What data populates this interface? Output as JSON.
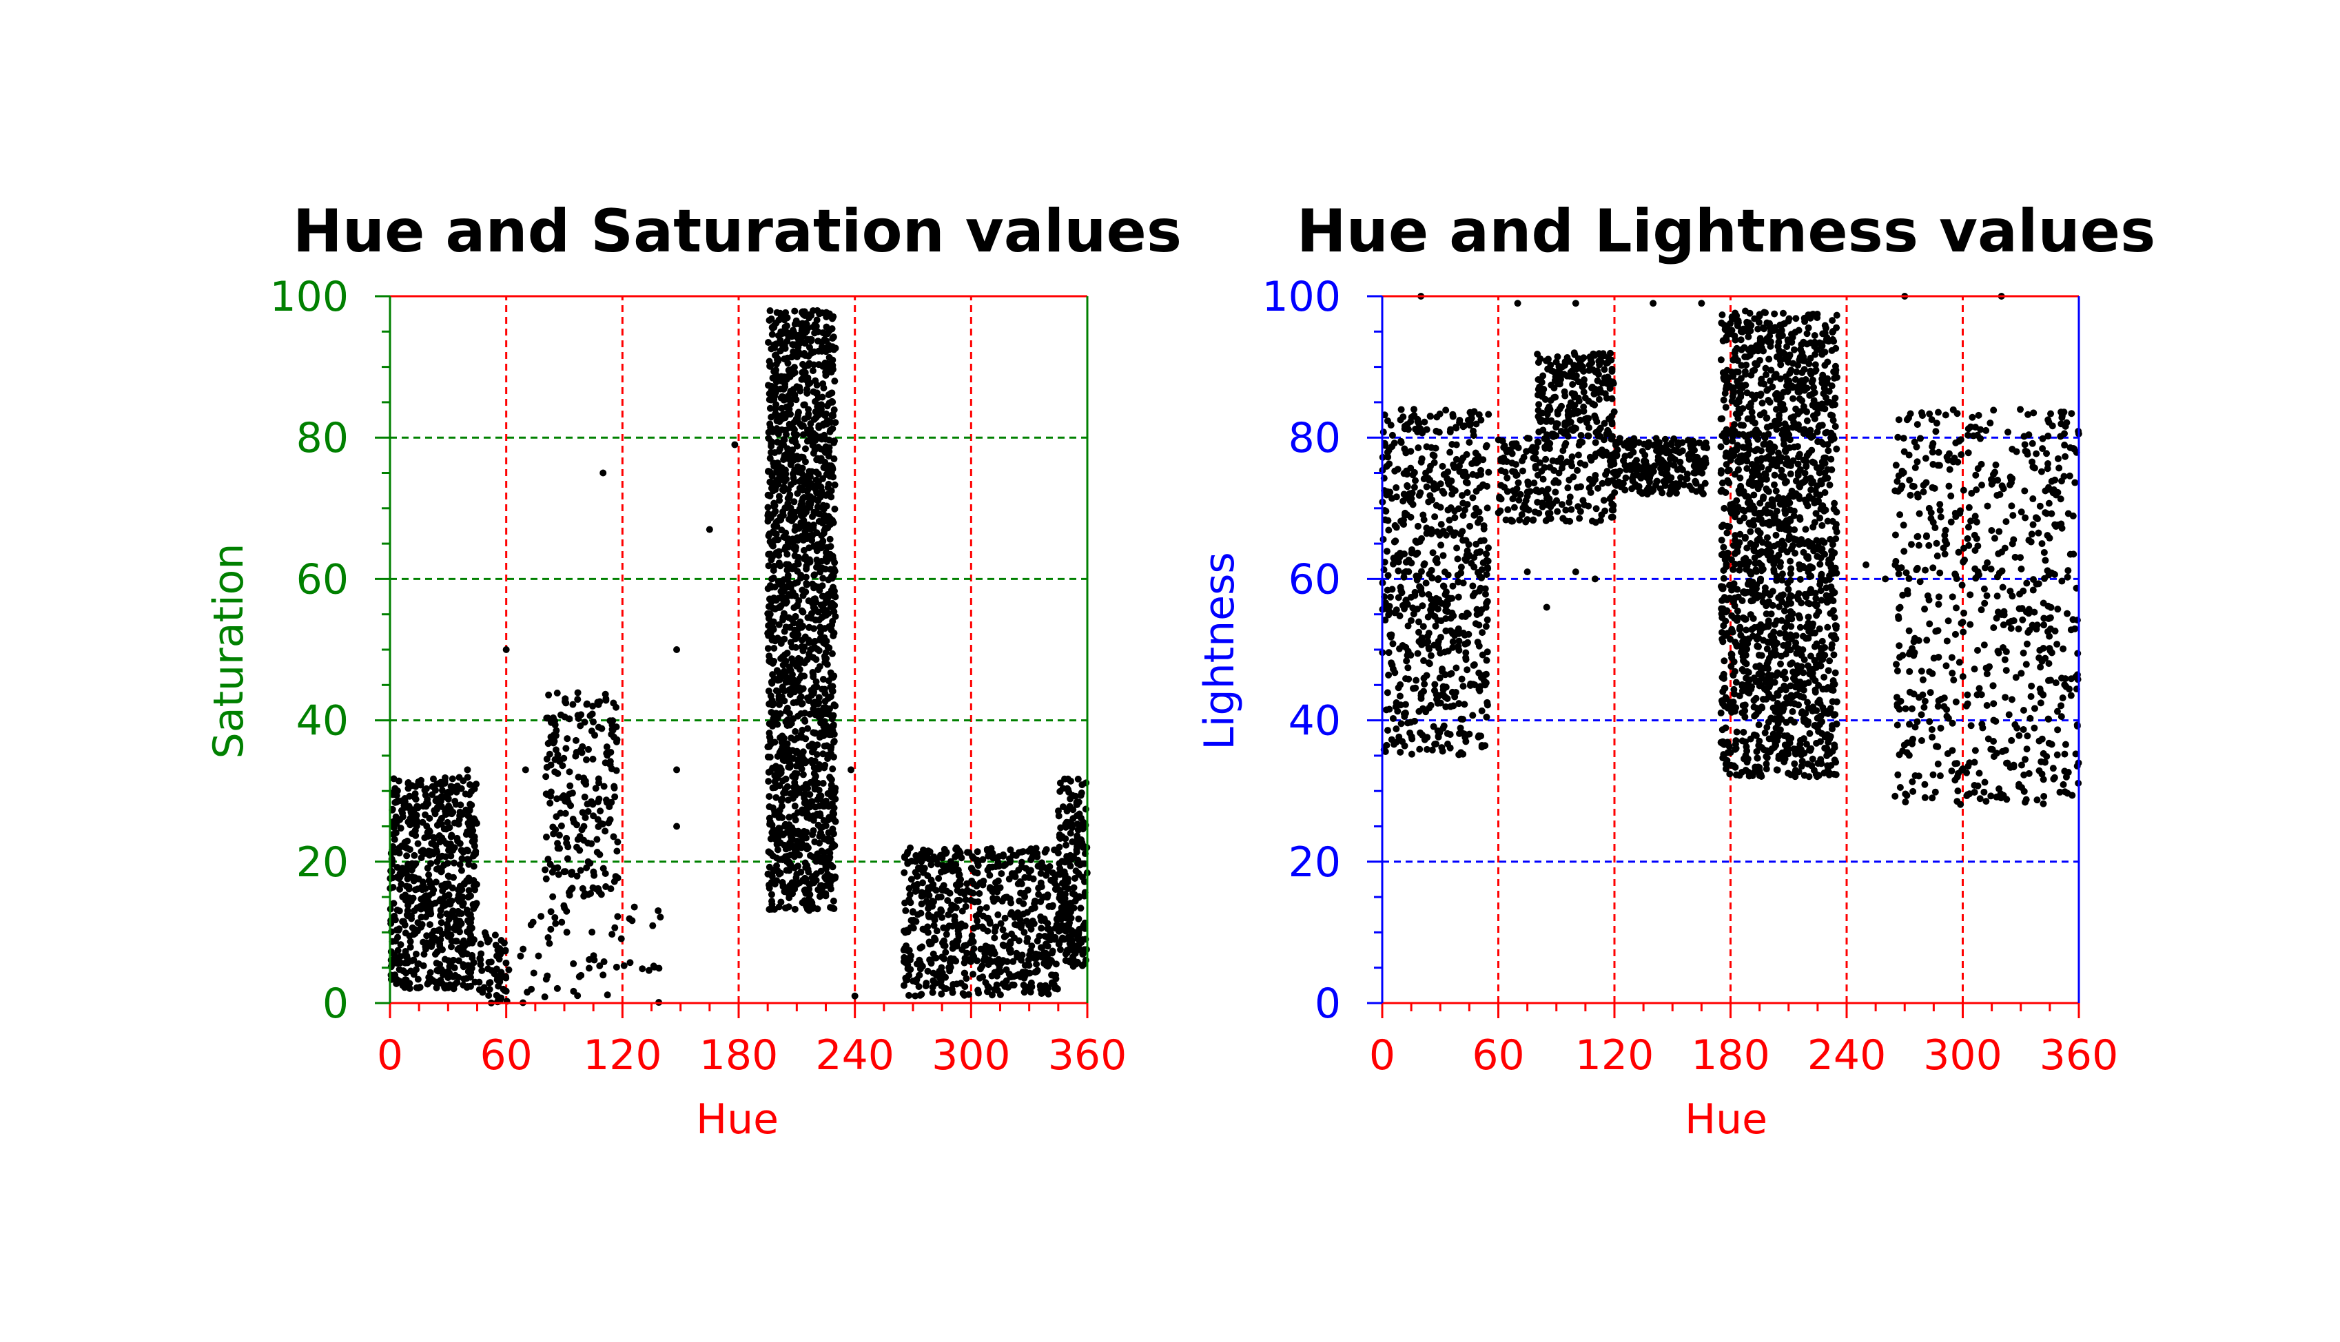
{
  "chart_data": [
    {
      "type": "scatter",
      "title": "Hue and Saturation values",
      "xlabel": "Hue",
      "ylabel": "Saturation",
      "xlim": [
        0,
        360
      ],
      "ylim": [
        0,
        100
      ],
      "xticks": [
        "0",
        "60",
        "120",
        "180",
        "240",
        "300",
        "360"
      ],
      "yticks": [
        "0",
        "20",
        "40",
        "60",
        "80",
        "100"
      ],
      "x_axis_color": "#ff0000",
      "y_axis_color": "#008000",
      "point_color": "#000000",
      "grid": true,
      "clusters": [
        {
          "x": [
            0,
            45
          ],
          "y": [
            2,
            32
          ],
          "density": "high"
        },
        {
          "x": [
            45,
            60
          ],
          "y": [
            0,
            10
          ],
          "density": "low"
        },
        {
          "x": [
            60,
            140
          ],
          "y": [
            0,
            15
          ],
          "density": "low"
        },
        {
          "x": [
            80,
            118
          ],
          "y": [
            15,
            44
          ],
          "density": "medium"
        },
        {
          "x": [
            195,
            230
          ],
          "y": [
            13,
            98
          ],
          "density": "very high"
        },
        {
          "x": [
            265,
            345
          ],
          "y": [
            1,
            22
          ],
          "density": "high"
        },
        {
          "x": [
            345,
            360
          ],
          "y": [
            5,
            32
          ],
          "density": "medium"
        }
      ],
      "outliers": [
        {
          "x": 60,
          "y": 50
        },
        {
          "x": 110,
          "y": 75
        },
        {
          "x": 148,
          "y": 50
        },
        {
          "x": 165,
          "y": 67
        },
        {
          "x": 178,
          "y": 79
        },
        {
          "x": 40,
          "y": 33
        },
        {
          "x": 70,
          "y": 33
        },
        {
          "x": 148,
          "y": 33
        },
        {
          "x": 238,
          "y": 33
        },
        {
          "x": 148,
          "y": 25
        },
        {
          "x": 240,
          "y": 1
        }
      ]
    },
    {
      "type": "scatter",
      "title": "Hue and Lightness values",
      "xlabel": "Hue",
      "ylabel": "Lightness",
      "xlim": [
        0,
        360
      ],
      "ylim": [
        0,
        100
      ],
      "xticks": [
        "0",
        "60",
        "120",
        "180",
        "240",
        "300",
        "360"
      ],
      "yticks": [
        "0",
        "20",
        "40",
        "60",
        "80",
        "100"
      ],
      "x_axis_color": "#ff0000",
      "y_axis_color": "#0000ff",
      "point_color": "#000000",
      "grid": true,
      "clusters": [
        {
          "x": [
            0,
            55
          ],
          "y": [
            35,
            84
          ],
          "density": "high"
        },
        {
          "x": [
            60,
            120
          ],
          "y": [
            68,
            80
          ],
          "density": "medium"
        },
        {
          "x": [
            80,
            120
          ],
          "y": [
            80,
            92
          ],
          "density": "medium"
        },
        {
          "x": [
            120,
            168
          ],
          "y": [
            72,
            80
          ],
          "density": "medium"
        },
        {
          "x": [
            175,
            235
          ],
          "y": [
            32,
            98
          ],
          "density": "very high"
        },
        {
          "x": [
            265,
            360
          ],
          "y": [
            28,
            84
          ],
          "density": "high"
        }
      ],
      "outliers": [
        {
          "x": 20,
          "y": 100
        },
        {
          "x": 70,
          "y": 99
        },
        {
          "x": 100,
          "y": 99
        },
        {
          "x": 140,
          "y": 99
        },
        {
          "x": 165,
          "y": 99
        },
        {
          "x": 270,
          "y": 100
        },
        {
          "x": 320,
          "y": 100
        },
        {
          "x": 75,
          "y": 61
        },
        {
          "x": 85,
          "y": 56
        },
        {
          "x": 100,
          "y": 61
        },
        {
          "x": 110,
          "y": 60
        },
        {
          "x": 250,
          "y": 62
        },
        {
          "x": 260,
          "y": 60
        }
      ]
    }
  ]
}
